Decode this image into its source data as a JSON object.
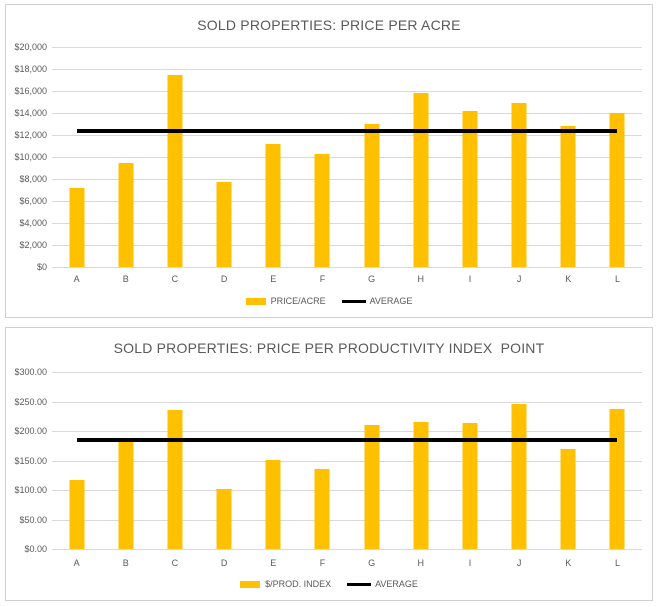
{
  "colors": {
    "bar_fill": "#FFC000",
    "average_line": "#000000",
    "gridline": "#D9D9D9",
    "axis_text": "#595959",
    "panel_border": "#D0CECE"
  },
  "chart_data": [
    {
      "type": "bar",
      "title": "SOLD PROPERTIES: PRICE PER ACRE",
      "xlabel": "",
      "ylabel": "",
      "grid": true,
      "legend_position": "bottom",
      "categories": [
        "A",
        "B",
        "C",
        "D",
        "E",
        "F",
        "G",
        "H",
        "I",
        "J",
        "K",
        "L"
      ],
      "series": [
        {
          "name": "PRICE/ACRE",
          "type": "bar",
          "color": "#FFC000",
          "values": [
            7200,
            9500,
            17500,
            7700,
            11200,
            10300,
            13000,
            15800,
            14200,
            14900,
            12800,
            14000
          ]
        },
        {
          "name": "AVERAGE",
          "type": "line",
          "color": "#000000",
          "value": 12400
        }
      ],
      "ylim": [
        0,
        20000
      ],
      "y_tick_step": 2000,
      "y_tick_labels": [
        "$20,000",
        "$18,000",
        "$16,000",
        "$14,000",
        "$12,000",
        "$10,000",
        "$8,000",
        "$6,000",
        "$4,000",
        "$2,000",
        "$0"
      ]
    },
    {
      "type": "bar",
      "title": "SOLD PROPERTIES: PRICE PER PRODUCTIVITY INDEX  POINT",
      "xlabel": "",
      "ylabel": "",
      "grid": true,
      "legend_position": "bottom",
      "categories": [
        "A",
        "B",
        "C",
        "D",
        "E",
        "F",
        "G",
        "H",
        "I",
        "J",
        "K",
        "L"
      ],
      "series": [
        {
          "name": "$/PROD. INDEX",
          "type": "bar",
          "color": "#FFC000",
          "values": [
            117,
            184,
            236,
            101,
            151,
            135,
            211,
            216,
            214,
            245,
            169,
            238
          ]
        },
        {
          "name": "AVERAGE",
          "type": "line",
          "color": "#000000",
          "value": 185
        }
      ],
      "ylim": [
        0,
        300
      ],
      "y_tick_step": 50,
      "y_tick_labels": [
        "$300.00",
        "$250.00",
        "$200.00",
        "$150.00",
        "$100.00",
        "$50.00",
        "$0.00"
      ]
    }
  ]
}
